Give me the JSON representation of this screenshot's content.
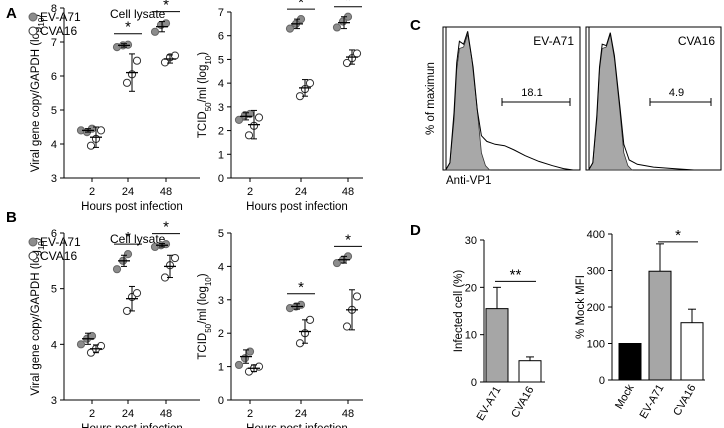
{
  "panel_labels": [
    "A",
    "B",
    "C",
    "D"
  ],
  "colors": {
    "ev": "#8c8c8c",
    "cva_fill": "#ffffff",
    "mock": "#000000",
    "bar_ev": "#a6a6a6",
    "hist_fill": "#a8a8a8"
  },
  "chart_data": [
    {
      "id": "A-left",
      "type": "scatter",
      "panel": "A",
      "title": "Cell lysate",
      "xlabel": "Hours post infection",
      "ylabel": "Viral gene copy/GAPDH (log10)",
      "ylabel_parts": [
        "Viral gene copy/GAPDH (log",
        "10",
        ")"
      ],
      "categories": [
        "2",
        "24",
        "48"
      ],
      "ylim": [
        3,
        8
      ],
      "yticks": [
        "3",
        "4",
        "5",
        "6",
        "7",
        "8"
      ],
      "legend": [
        "EV-A71",
        "CVA16"
      ],
      "series": [
        {
          "name": "EV-A71",
          "mean": [
            4.4,
            6.9,
            7.45
          ],
          "sd": [
            0.05,
            0.05,
            0.15
          ],
          "points": [
            [
              4.4,
              4.35,
              4.45
            ],
            [
              6.85,
              6.9,
              6.92
            ],
            [
              7.3,
              7.5,
              7.55
            ]
          ]
        },
        {
          "name": "CVA16",
          "mean": [
            4.2,
            6.1,
            6.5
          ],
          "sd": [
            0.3,
            0.55,
            0.12
          ],
          "points": [
            [
              3.95,
              4.15,
              4.4
            ],
            [
              5.8,
              6.05,
              6.45
            ],
            [
              6.4,
              6.55,
              6.6
            ]
          ]
        }
      ],
      "significance": [
        {
          "category": "24",
          "label": "*"
        },
        {
          "category": "48",
          "label": "*"
        }
      ]
    },
    {
      "id": "A-right",
      "type": "scatter",
      "panel": "A",
      "xlabel": "Hours post infection",
      "ylabel": "TCID50/ml (log10)",
      "ylabel_parts": [
        "TCID",
        "50",
        "/ml (log",
        "10",
        ")"
      ],
      "categories": [
        "2",
        "24",
        "48"
      ],
      "ylim": [
        0,
        7
      ],
      "yticks": [
        "0",
        "1",
        "2",
        "3",
        "4",
        "5",
        "6",
        "7"
      ],
      "series": [
        {
          "name": "EV-A71",
          "mean": [
            2.6,
            6.5,
            6.55
          ],
          "sd": [
            0.15,
            0.2,
            0.25
          ],
          "points": [
            [
              2.45,
              2.65,
              2.7
            ],
            [
              6.3,
              6.5,
              6.7
            ],
            [
              6.35,
              6.6,
              6.8
            ]
          ]
        },
        {
          "name": "CVA16",
          "mean": [
            2.25,
            3.8,
            5.1
          ],
          "sd": [
            0.6,
            0.35,
            0.3
          ],
          "points": [
            [
              1.8,
              2.2,
              2.55
            ],
            [
              3.45,
              3.75,
              4.0
            ],
            [
              4.85,
              5.05,
              5.25
            ]
          ]
        }
      ],
      "significance": [
        {
          "category": "24",
          "label": "*"
        },
        {
          "category": "48",
          "label": "*"
        }
      ]
    },
    {
      "id": "B-left",
      "type": "scatter",
      "panel": "B",
      "title": "Cell lysate",
      "xlabel": "Hours post infection",
      "ylabel": "Viral gene copy/GAPDH (log10)",
      "ylabel_parts": [
        "Viral gene copy/GAPDH (log",
        "10",
        ")"
      ],
      "categories": [
        "2",
        "24",
        "48"
      ],
      "ylim": [
        3,
        6
      ],
      "yticks": [
        "3",
        "4",
        "5",
        "6"
      ],
      "legend": [
        "EV-A71",
        "CVA16"
      ],
      "series": [
        {
          "name": "EV-A71",
          "mean": [
            4.1,
            5.5,
            5.78
          ],
          "sd": [
            0.1,
            0.1,
            0.03
          ],
          "points": [
            [
              4.0,
              4.1,
              4.15
            ],
            [
              5.35,
              5.5,
              5.62
            ],
            [
              5.75,
              5.78,
              5.8
            ]
          ]
        },
        {
          "name": "CVA16",
          "mean": [
            3.92,
            4.82,
            5.4
          ],
          "sd": [
            0.07,
            0.22,
            0.2
          ],
          "points": [
            [
              3.85,
              3.92,
              3.97
            ],
            [
              4.6,
              4.85,
              4.92
            ],
            [
              5.2,
              5.42,
              5.55
            ]
          ]
        }
      ],
      "significance": [
        {
          "category": "24",
          "label": "*"
        },
        {
          "category": "48",
          "label": "*"
        }
      ]
    },
    {
      "id": "B-right",
      "type": "scatter",
      "panel": "B",
      "xlabel": "Hours post infection",
      "ylabel": "TCID50/ml (log10)",
      "ylabel_parts": [
        "TCID",
        "50",
        "/ml (log",
        "10",
        ")"
      ],
      "categories": [
        "2",
        "24",
        "48"
      ],
      "ylim": [
        0,
        5
      ],
      "yticks": [
        "0",
        "1",
        "2",
        "3",
        "4",
        "5"
      ],
      "series": [
        {
          "name": "EV-A71",
          "mean": [
            1.3,
            2.8,
            4.2
          ],
          "sd": [
            0.2,
            0.08,
            0.1
          ],
          "points": [
            [
              1.05,
              1.25,
              1.45
            ],
            [
              2.75,
              2.8,
              2.85
            ],
            [
              4.1,
              4.2,
              4.3
            ]
          ]
        },
        {
          "name": "CVA16",
          "mean": [
            0.95,
            2.05,
            2.7
          ],
          "sd": [
            0.1,
            0.35,
            0.6
          ],
          "points": [
            [
              0.85,
              0.95,
              1.0
            ],
            [
              1.7,
              2.0,
              2.4
            ],
            [
              2.2,
              2.7,
              3.1
            ]
          ]
        }
      ],
      "significance": [
        {
          "category": "24",
          "label": "*"
        },
        {
          "category": "48",
          "label": "*"
        }
      ]
    },
    {
      "id": "C-left",
      "type": "histogram",
      "panel": "C",
      "title": "EV-A71",
      "ylabel": "% of maximun",
      "xlabel": "Anti-VP1",
      "gate_value": "18.1"
    },
    {
      "id": "C-right",
      "type": "histogram",
      "panel": "C",
      "title": "CVA16",
      "gate_value": "4.9"
    },
    {
      "id": "D-left",
      "type": "bar",
      "panel": "D",
      "ylabel": "Infected cell (%)",
      "categories": [
        "EV-A71",
        "CVA16"
      ],
      "values": [
        15.5,
        4.5
      ],
      "errors": [
        4.5,
        0.8
      ],
      "ylim": [
        0,
        30
      ],
      "yticks": [
        "0",
        "10",
        "20",
        "30"
      ],
      "significance": [
        {
          "between": [
            "EV-A71",
            "CVA16"
          ],
          "label": "**"
        }
      ]
    },
    {
      "id": "D-right",
      "type": "bar",
      "panel": "D",
      "ylabel": "% Mock MFI",
      "categories": [
        "Mock",
        "EV-A71",
        "CVA16"
      ],
      "values": [
        100,
        298,
        157
      ],
      "errors": [
        0,
        75,
        37
      ],
      "ylim": [
        0,
        400
      ],
      "yticks": [
        "0",
        "100",
        "200",
        "300",
        "400"
      ],
      "significance": [
        {
          "between": [
            "EV-A71",
            "CVA16"
          ],
          "label": "*"
        }
      ]
    }
  ]
}
